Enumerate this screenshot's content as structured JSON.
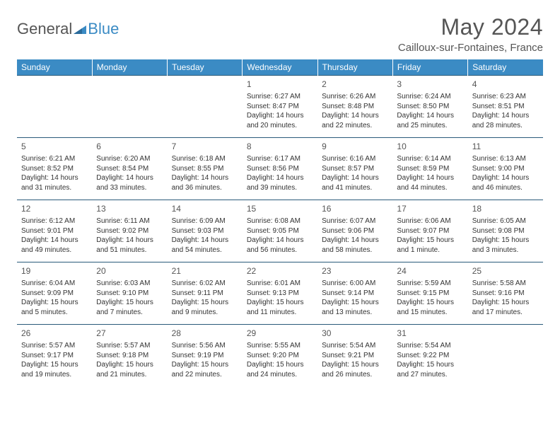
{
  "logo": {
    "text_a": "General",
    "text_b": "Blue"
  },
  "header": {
    "month_title": "May 2024",
    "location": "Cailloux-sur-Fontaines, France"
  },
  "colors": {
    "header_bar": "#3b8bc4",
    "row_border": "#2a5a7a",
    "text": "#333333",
    "muted": "#555555",
    "bg": "#ffffff"
  },
  "weekdays": [
    "Sunday",
    "Monday",
    "Tuesday",
    "Wednesday",
    "Thursday",
    "Friday",
    "Saturday"
  ],
  "weeks": [
    [
      null,
      null,
      null,
      {
        "d": "1",
        "sr": "6:27 AM",
        "ss": "8:47 PM",
        "dl": "14 hours and 20 minutes."
      },
      {
        "d": "2",
        "sr": "6:26 AM",
        "ss": "8:48 PM",
        "dl": "14 hours and 22 minutes."
      },
      {
        "d": "3",
        "sr": "6:24 AM",
        "ss": "8:50 PM",
        "dl": "14 hours and 25 minutes."
      },
      {
        "d": "4",
        "sr": "6:23 AM",
        "ss": "8:51 PM",
        "dl": "14 hours and 28 minutes."
      }
    ],
    [
      {
        "d": "5",
        "sr": "6:21 AM",
        "ss": "8:52 PM",
        "dl": "14 hours and 31 minutes."
      },
      {
        "d": "6",
        "sr": "6:20 AM",
        "ss": "8:54 PM",
        "dl": "14 hours and 33 minutes."
      },
      {
        "d": "7",
        "sr": "6:18 AM",
        "ss": "8:55 PM",
        "dl": "14 hours and 36 minutes."
      },
      {
        "d": "8",
        "sr": "6:17 AM",
        "ss": "8:56 PM",
        "dl": "14 hours and 39 minutes."
      },
      {
        "d": "9",
        "sr": "6:16 AM",
        "ss": "8:57 PM",
        "dl": "14 hours and 41 minutes."
      },
      {
        "d": "10",
        "sr": "6:14 AM",
        "ss": "8:59 PM",
        "dl": "14 hours and 44 minutes."
      },
      {
        "d": "11",
        "sr": "6:13 AM",
        "ss": "9:00 PM",
        "dl": "14 hours and 46 minutes."
      }
    ],
    [
      {
        "d": "12",
        "sr": "6:12 AM",
        "ss": "9:01 PM",
        "dl": "14 hours and 49 minutes."
      },
      {
        "d": "13",
        "sr": "6:11 AM",
        "ss": "9:02 PM",
        "dl": "14 hours and 51 minutes."
      },
      {
        "d": "14",
        "sr": "6:09 AM",
        "ss": "9:03 PM",
        "dl": "14 hours and 54 minutes."
      },
      {
        "d": "15",
        "sr": "6:08 AM",
        "ss": "9:05 PM",
        "dl": "14 hours and 56 minutes."
      },
      {
        "d": "16",
        "sr": "6:07 AM",
        "ss": "9:06 PM",
        "dl": "14 hours and 58 minutes."
      },
      {
        "d": "17",
        "sr": "6:06 AM",
        "ss": "9:07 PM",
        "dl": "15 hours and 1 minute."
      },
      {
        "d": "18",
        "sr": "6:05 AM",
        "ss": "9:08 PM",
        "dl": "15 hours and 3 minutes."
      }
    ],
    [
      {
        "d": "19",
        "sr": "6:04 AM",
        "ss": "9:09 PM",
        "dl": "15 hours and 5 minutes."
      },
      {
        "d": "20",
        "sr": "6:03 AM",
        "ss": "9:10 PM",
        "dl": "15 hours and 7 minutes."
      },
      {
        "d": "21",
        "sr": "6:02 AM",
        "ss": "9:11 PM",
        "dl": "15 hours and 9 minutes."
      },
      {
        "d": "22",
        "sr": "6:01 AM",
        "ss": "9:13 PM",
        "dl": "15 hours and 11 minutes."
      },
      {
        "d": "23",
        "sr": "6:00 AM",
        "ss": "9:14 PM",
        "dl": "15 hours and 13 minutes."
      },
      {
        "d": "24",
        "sr": "5:59 AM",
        "ss": "9:15 PM",
        "dl": "15 hours and 15 minutes."
      },
      {
        "d": "25",
        "sr": "5:58 AM",
        "ss": "9:16 PM",
        "dl": "15 hours and 17 minutes."
      }
    ],
    [
      {
        "d": "26",
        "sr": "5:57 AM",
        "ss": "9:17 PM",
        "dl": "15 hours and 19 minutes."
      },
      {
        "d": "27",
        "sr": "5:57 AM",
        "ss": "9:18 PM",
        "dl": "15 hours and 21 minutes."
      },
      {
        "d": "28",
        "sr": "5:56 AM",
        "ss": "9:19 PM",
        "dl": "15 hours and 22 minutes."
      },
      {
        "d": "29",
        "sr": "5:55 AM",
        "ss": "9:20 PM",
        "dl": "15 hours and 24 minutes."
      },
      {
        "d": "30",
        "sr": "5:54 AM",
        "ss": "9:21 PM",
        "dl": "15 hours and 26 minutes."
      },
      {
        "d": "31",
        "sr": "5:54 AM",
        "ss": "9:22 PM",
        "dl": "15 hours and 27 minutes."
      },
      null
    ]
  ],
  "labels": {
    "sunrise": "Sunrise:",
    "sunset": "Sunset:",
    "daylight": "Daylight:"
  }
}
